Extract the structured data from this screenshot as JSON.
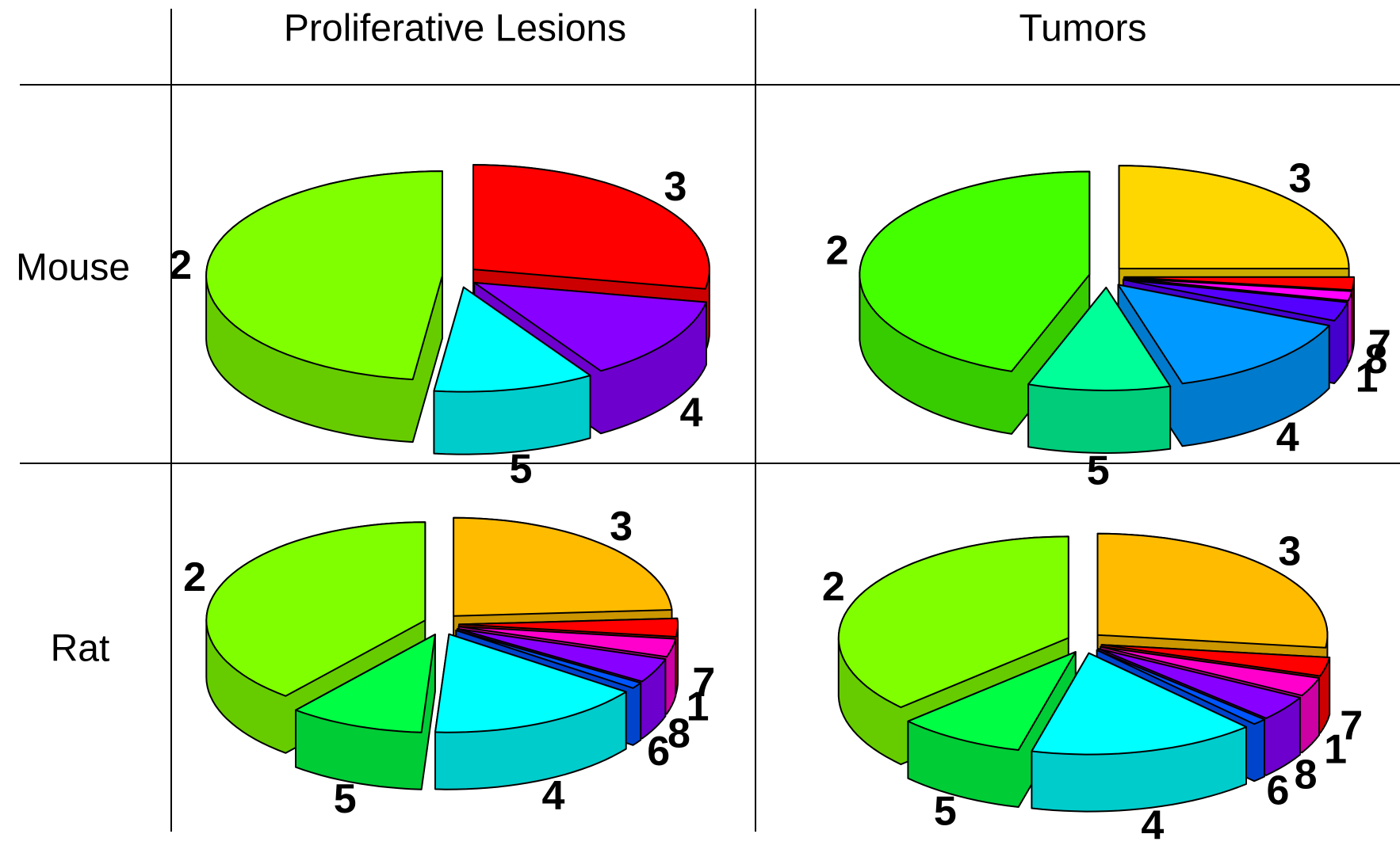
{
  "columns": [
    "Proliferative Lesions",
    "Tumors"
  ],
  "rows": [
    "Mouse",
    "Rat"
  ],
  "chart_data": [
    {
      "type": "pie",
      "categories": [
        "3",
        "4",
        "5",
        "2"
      ],
      "values": [
        28,
        13,
        11,
        48
      ],
      "colors": [
        "#ff0000",
        "#8800ff",
        "#00ffff",
        "#80ff00"
      ]
    },
    {
      "type": "pie",
      "categories": [
        "3",
        "7",
        "8",
        "1",
        "4",
        "5",
        "2"
      ],
      "values": [
        25,
        2,
        1.5,
        3,
        14,
        10,
        44.5
      ],
      "colors": [
        "#ffd700",
        "#ff0000",
        "#ff00ff",
        "#5500ff",
        "#0099ff",
        "#00ff99",
        "#44ff00"
      ]
    },
    {
      "type": "pie",
      "categories": [
        "3",
        "7",
        "1",
        "8",
        "6",
        "4",
        "5",
        "2"
      ],
      "values": [
        24,
        3,
        3,
        4,
        1,
        16,
        10,
        39
      ],
      "colors": [
        "#ffbb00",
        "#ff0000",
        "#ff00cc",
        "#8800ff",
        "#0055ff",
        "#00ffff",
        "#00ff44",
        "#80ff00"
      ]
    },
    {
      "type": "pie",
      "categories": [
        "3",
        "7",
        "1",
        "8",
        "6",
        "4",
        "5",
        "2"
      ],
      "values": [
        27,
        3,
        3,
        4,
        1,
        16,
        9,
        37
      ],
      "colors": [
        "#ffbb00",
        "#ff0000",
        "#ff00cc",
        "#8800ff",
        "#0055ff",
        "#00ffff",
        "#00ff44",
        "#80ff00"
      ]
    }
  ]
}
